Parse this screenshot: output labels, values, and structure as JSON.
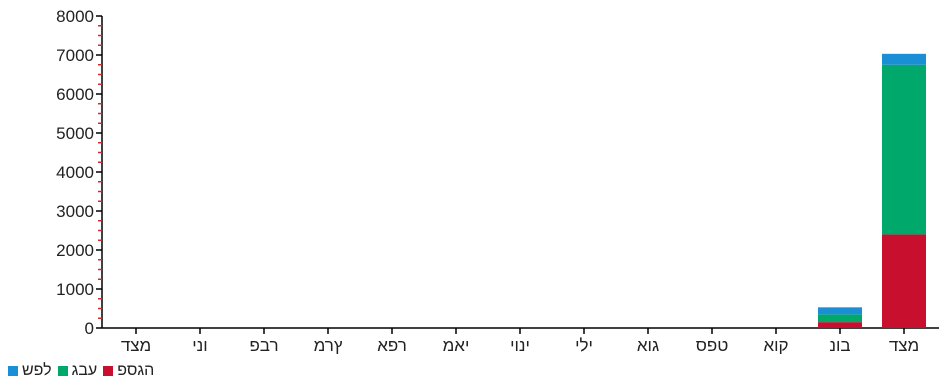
{
  "chart_data": {
    "type": "bar",
    "stacked": true,
    "categories": [
      "מצד",
      "בונ",
      "קוא",
      "טפס",
      "גוא",
      "ילי",
      "ינוי",
      "יאמ",
      "רפא",
      "ץרמ",
      "רבפ",
      "וני",
      "מצד"
    ],
    "series": [
      {
        "name": "הגספ",
        "color": "#c8102e",
        "values": [
          2400,
          150,
          0,
          0,
          0,
          0,
          0,
          0,
          0,
          0,
          0,
          0,
          0
        ]
      },
      {
        "name": "עבג",
        "color": "#00a86b",
        "values": [
          4350,
          200,
          0,
          0,
          0,
          0,
          0,
          0,
          0,
          0,
          0,
          0,
          0
        ]
      },
      {
        "name": "לפש",
        "color": "#1a8fd6",
        "values": [
          280,
          180,
          0,
          0,
          0,
          0,
          0,
          0,
          0,
          0,
          0,
          0,
          0
        ]
      }
    ],
    "ylim": [
      0,
      8000
    ],
    "yticks": [
      0,
      1000,
      2000,
      3000,
      4000,
      5000,
      6000,
      7000,
      8000
    ],
    "legend_position": "bottom-left",
    "grid": false
  }
}
